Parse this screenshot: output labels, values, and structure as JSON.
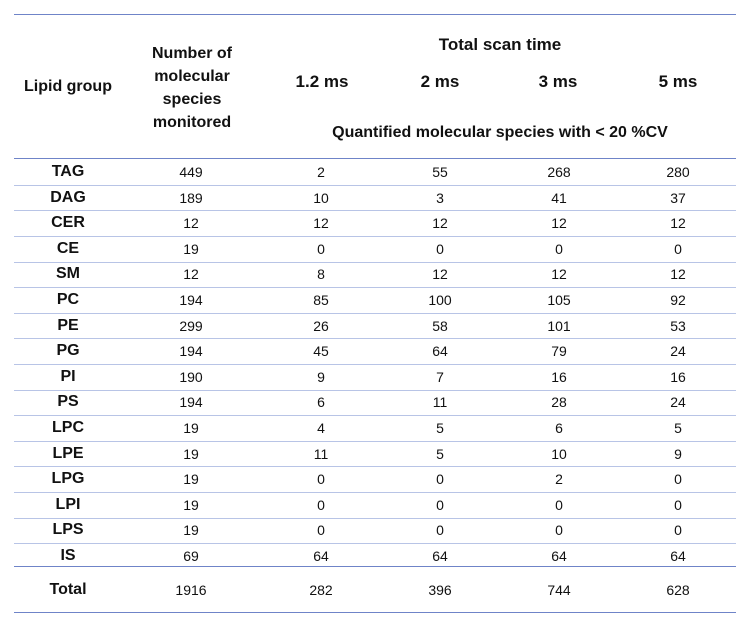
{
  "header": {
    "lipid_group": "Lipid group",
    "number_of_species": "Number of molecular species monitored",
    "total_scan_time": "Total scan time",
    "scan_times": [
      "1.2 ms",
      "2 ms",
      "3 ms",
      "5 ms"
    ],
    "quantified_label": "Quantified molecular species with < 20 %CV"
  },
  "rows": [
    {
      "group": "TAG",
      "monitored": "449",
      "values": [
        "2",
        "55",
        "268",
        "280"
      ]
    },
    {
      "group": "DAG",
      "monitored": "189",
      "values": [
        "10",
        "3",
        "41",
        "37"
      ]
    },
    {
      "group": "CER",
      "monitored": "12",
      "values": [
        "12",
        "12",
        "12",
        "12"
      ]
    },
    {
      "group": "CE",
      "monitored": "19",
      "values": [
        "0",
        "0",
        "0",
        "0"
      ]
    },
    {
      "group": "SM",
      "monitored": "12",
      "values": [
        "8",
        "12",
        "12",
        "12"
      ]
    },
    {
      "group": "PC",
      "monitored": "194",
      "values": [
        "85",
        "100",
        "105",
        "92"
      ]
    },
    {
      "group": "PE",
      "monitored": "299",
      "values": [
        "26",
        "58",
        "101",
        "53"
      ]
    },
    {
      "group": "PG",
      "monitored": "194",
      "values": [
        "45",
        "64",
        "79",
        "24"
      ]
    },
    {
      "group": "PI",
      "monitored": "190",
      "values": [
        "9",
        "7",
        "16",
        "16"
      ]
    },
    {
      "group": "PS",
      "monitored": "194",
      "values": [
        "6",
        "11",
        "28",
        "24"
      ]
    },
    {
      "group": "LPC",
      "monitored": "19",
      "values": [
        "4",
        "5",
        "6",
        "5"
      ]
    },
    {
      "group": "LPE",
      "monitored": "19",
      "values": [
        "11",
        "5",
        "10",
        "9"
      ]
    },
    {
      "group": "LPG",
      "monitored": "19",
      "values": [
        "0",
        "0",
        "2",
        "0"
      ]
    },
    {
      "group": "LPI",
      "monitored": "19",
      "values": [
        "0",
        "0",
        "0",
        "0"
      ]
    },
    {
      "group": "LPS",
      "monitored": "19",
      "values": [
        "0",
        "0",
        "0",
        "0"
      ]
    },
    {
      "group": "IS",
      "monitored": "69",
      "values": [
        "64",
        "64",
        "64",
        "64"
      ]
    }
  ],
  "total": {
    "group": "Total",
    "monitored": "1916",
    "values": [
      "282",
      "396",
      "744",
      "628"
    ]
  },
  "colors": {
    "rule": "#6f84c8",
    "row_separator": "#b8c4e6"
  }
}
